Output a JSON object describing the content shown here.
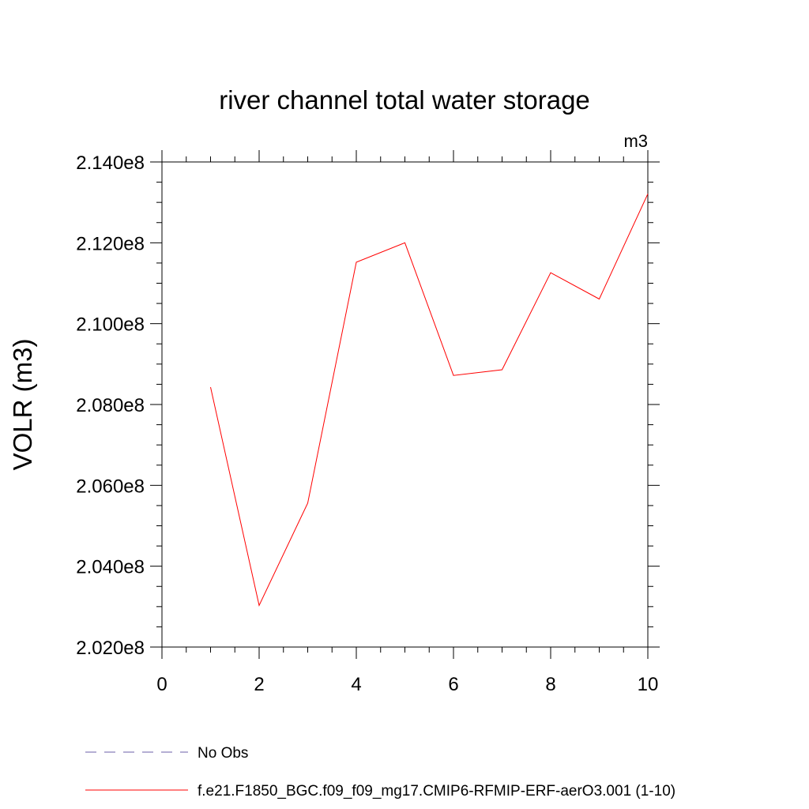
{
  "chart_data": {
    "type": "line",
    "title": "river channel total water storage",
    "units_label": "m3",
    "ylabel": "VOLR  (m3)",
    "xlabel": "",
    "xlim": [
      0,
      10
    ],
    "ylim": [
      202000000,
      214000000
    ],
    "x_ticks": [
      0,
      2,
      4,
      6,
      8,
      10
    ],
    "x_tick_labels": [
      "0",
      "2",
      "4",
      "6",
      "8",
      "10"
    ],
    "y_ticks": [
      202000000,
      204000000,
      206000000,
      208000000,
      210000000,
      212000000,
      214000000
    ],
    "y_tick_labels": [
      "2.020e8",
      "2.040e8",
      "2.060e8",
      "2.080e8",
      "2.100e8",
      "2.120e8",
      "2.140e8"
    ],
    "grid": false,
    "legend_position": "bottom",
    "series": [
      {
        "name": "f.e21.F1850_BGC.f09_f09_mg17.CMIP6-RFMIP-ERF-aerO3.001 (1-10)",
        "color": "#ff0000",
        "style": "solid",
        "x": [
          1,
          2,
          3,
          4,
          5,
          6,
          7,
          8,
          9,
          10
        ],
        "y": [
          208430000,
          203030000,
          205560000,
          211520000,
          212000000,
          208720000,
          208860000,
          211260000,
          210610000,
          213210000
        ]
      }
    ],
    "legend": [
      {
        "label": "No Obs",
        "color": "#6b5fa8",
        "style": "dashed"
      },
      {
        "label": "f.e21.F1850_BGC.f09_f09_mg17.CMIP6-RFMIP-ERF-aerO3.001 (1-10)",
        "color": "#ff0000",
        "style": "solid"
      }
    ]
  }
}
